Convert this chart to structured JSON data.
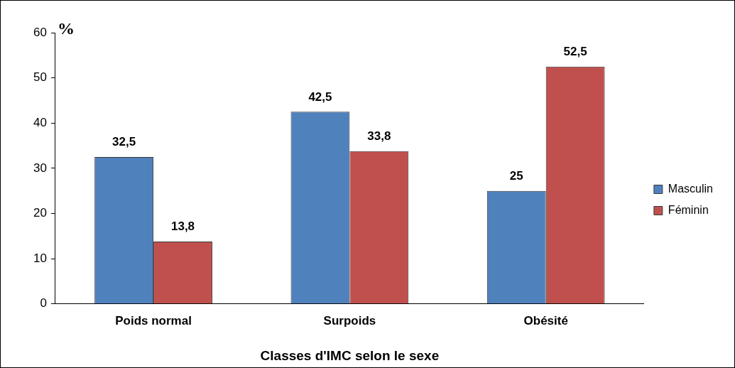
{
  "chart_data": {
    "type": "bar",
    "ylabel": "%",
    "xlabel": "Classes d'IMC selon le sexe",
    "categories": [
      "Poids normal",
      "Surpoids",
      "Obésité"
    ],
    "series": [
      {
        "name": "Masculin",
        "color": "#4f81bd",
        "values": [
          32.5,
          42.5,
          25
        ],
        "value_labels": [
          "32,5",
          "42,5",
          "25"
        ]
      },
      {
        "name": "Féminin",
        "color": "#c0504d",
        "values": [
          13.8,
          33.8,
          52.5
        ],
        "value_labels": [
          "13,8",
          "33,8",
          "52,5"
        ]
      }
    ],
    "ylim": [
      0,
      60
    ],
    "yticks": [
      0,
      10,
      20,
      30,
      40,
      50,
      60
    ],
    "grid": false,
    "legend": "right"
  }
}
